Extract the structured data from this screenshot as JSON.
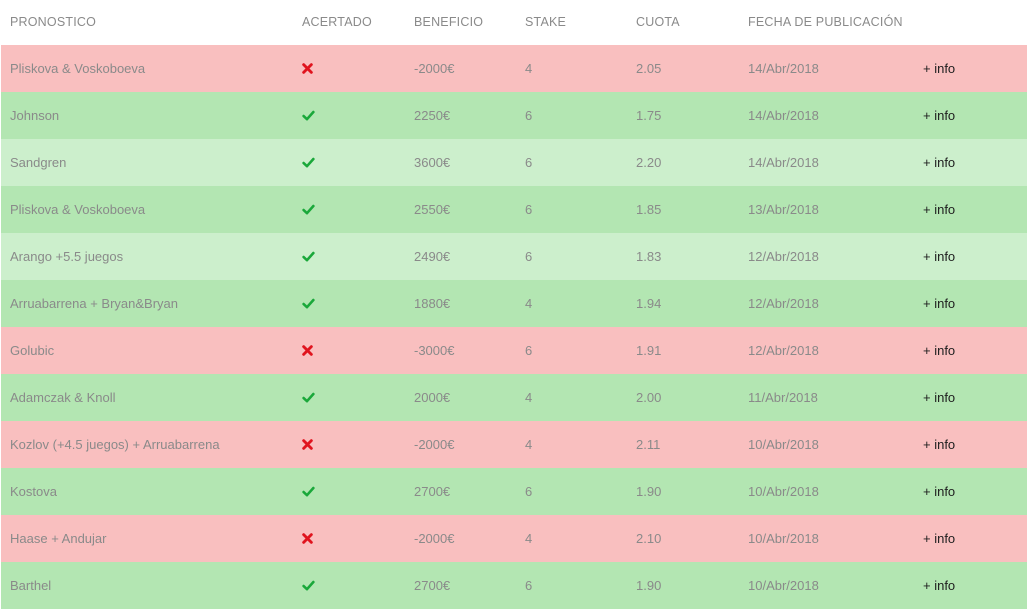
{
  "columns": {
    "pronostico": "PRONOSTICO",
    "acertado": "ACERTADO",
    "beneficio": "BENEFICIO",
    "stake": "STAKE",
    "cuota": "CUOTA",
    "fecha": "FECHA DE PUBLICACIÓN"
  },
  "colors": {
    "win": "#b3e6b2",
    "win_light": "#ccefcc",
    "loss": "#f9bfbf",
    "check": "#1aa83a",
    "cross": "#e0141e"
  },
  "rows": [
    {
      "pronostico": "Pliskova & Voskoboeva",
      "acertado": "cross-icon",
      "beneficio": "-2000€",
      "stake": "4",
      "cuota": "2.05",
      "fecha": "14/Abr/2018",
      "info": "+ info"
    },
    {
      "pronostico": "Johnson",
      "acertado": "check-icon",
      "beneficio": "2250€",
      "stake": "6",
      "cuota": "1.75",
      "fecha": "14/Abr/2018",
      "info": "+ info"
    },
    {
      "pronostico": "Sandgren",
      "acertado": "check-icon",
      "beneficio": "3600€",
      "stake": "6",
      "cuota": "2.20",
      "fecha": "14/Abr/2018",
      "info": "+ info"
    },
    {
      "pronostico": "Pliskova & Voskoboeva",
      "acertado": "check-icon",
      "beneficio": "2550€",
      "stake": "6",
      "cuota": "1.85",
      "fecha": "13/Abr/2018",
      "info": "+ info"
    },
    {
      "pronostico": "Arango +5.5 juegos",
      "acertado": "check-icon",
      "beneficio": "2490€",
      "stake": "6",
      "cuota": "1.83",
      "fecha": "12/Abr/2018",
      "info": "+ info"
    },
    {
      "pronostico": "Arruabarrena + Bryan&Bryan",
      "acertado": "check-icon",
      "beneficio": "1880€",
      "stake": "4",
      "cuota": "1.94",
      "fecha": "12/Abr/2018",
      "info": "+ info"
    },
    {
      "pronostico": "Golubic",
      "acertado": "cross-icon",
      "beneficio": "-3000€",
      "stake": "6",
      "cuota": "1.91",
      "fecha": "12/Abr/2018",
      "info": "+ info"
    },
    {
      "pronostico": "Adamczak & Knoll",
      "acertado": "check-icon",
      "beneficio": "2000€",
      "stake": "4",
      "cuota": "2.00",
      "fecha": "11/Abr/2018",
      "info": "+ info"
    },
    {
      "pronostico": "Kozlov (+4.5 juegos) + Arruabarrena",
      "acertado": "cross-icon",
      "beneficio": "-2000€",
      "stake": "4",
      "cuota": "2.11",
      "fecha": "10/Abr/2018",
      "info": "+ info"
    },
    {
      "pronostico": "Kostova",
      "acertado": "check-icon",
      "beneficio": "2700€",
      "stake": "6",
      "cuota": "1.90",
      "fecha": "10/Abr/2018",
      "info": "+ info"
    },
    {
      "pronostico": "Haase + Andujar",
      "acertado": "cross-icon",
      "beneficio": "-2000€",
      "stake": "4",
      "cuota": "2.10",
      "fecha": "10/Abr/2018",
      "info": "+ info"
    },
    {
      "pronostico": "Barthel",
      "acertado": "check-icon",
      "beneficio": "2700€",
      "stake": "6",
      "cuota": "1.90",
      "fecha": "10/Abr/2018",
      "info": "+ info"
    }
  ]
}
